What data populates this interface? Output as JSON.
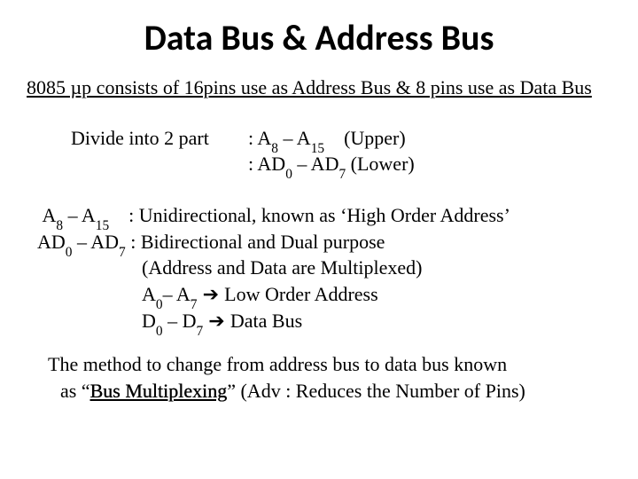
{
  "colors": {
    "background": "#ffffff",
    "text": "#000000"
  },
  "typography": {
    "title_font": "Calibri",
    "body_font": "Times New Roman",
    "title_size_pt": 30,
    "body_size_pt": 17
  },
  "title": "Data Bus & Address Bus",
  "intro": "8085 µp consists of 16pins use as Address Bus & 8 pins use as Data Bus",
  "divide": {
    "label": "Divide into 2 part",
    "upper_prefix": ": A",
    "upper_sub1": "8",
    "upper_mid": " – A",
    "upper_sub2": "15",
    "upper_suffix": "    (Upper)",
    "lower_prefix": ": AD",
    "lower_sub1": "0",
    "lower_mid": " – AD",
    "lower_sub2": "7",
    "lower_suffix": " (Lower)"
  },
  "detail": {
    "l1_a": " A",
    "l1_s1": "8",
    "l1_b": " – A",
    "l1_s2": "15",
    "l1_c": "    : Unidirectional, known as ‘High Order Address’",
    "l2_a": "AD",
    "l2_s1": "0",
    "l2_b": " – AD",
    "l2_s2": "7",
    "l2_c": " : Bidirectional and Dual purpose",
    "l3": "(Address and Data are Multiplexed)",
    "l4_a": "A",
    "l4_s1": "0",
    "l4_b": "– A",
    "l4_s2": "7",
    "l4_arrow": " ➔ ",
    "l4_c": "Low Order Address",
    "l5_a": "D",
    "l5_s1": "0",
    "l5_b": " – D",
    "l5_s2": "7",
    "l5_arrow": " ➔ ",
    "l5_c": "Data Bus"
  },
  "closing": {
    "line1": "The method to change from address bus to data bus known",
    "line2_a": "as “",
    "line2_term": "Bus Multiplexing",
    "line2_b": "” (Adv : Reduces the Number of Pins)"
  }
}
